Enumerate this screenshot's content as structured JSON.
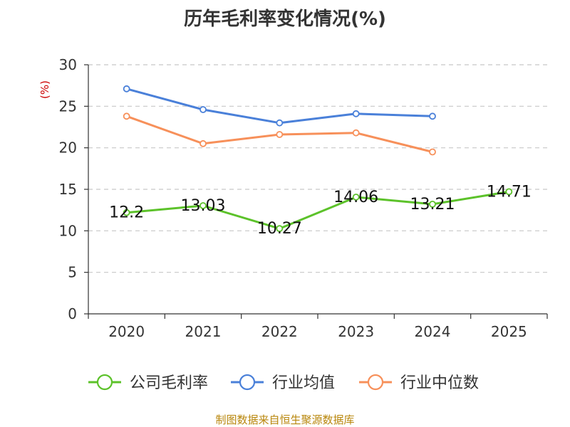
{
  "chart_data": {
    "type": "line",
    "title": "历年毛利率变化情况(%)",
    "ylabel": "(%)",
    "xlabel": "",
    "categories": [
      "2020",
      "2021",
      "2022",
      "2023",
      "2024",
      "2025"
    ],
    "ylim": [
      0,
      30
    ],
    "yticks": [
      0,
      5,
      10,
      15,
      20,
      25,
      30
    ],
    "grid": true,
    "legend_position": "bottom",
    "series": [
      {
        "name": "公司毛利率",
        "color": "#5cc22a",
        "show_labels": true,
        "values": [
          12.2,
          13.03,
          10.27,
          14.06,
          13.21,
          14.71
        ],
        "labels": [
          "12.2",
          "13.03",
          "10.27",
          "14.06",
          "13.21",
          "14.71"
        ]
      },
      {
        "name": "行业均值",
        "color": "#4a80d9",
        "show_labels": false,
        "values": [
          27.1,
          24.6,
          23.0,
          24.1,
          23.8,
          null
        ]
      },
      {
        "name": "行业中位数",
        "color": "#f7905a",
        "show_labels": false,
        "values": [
          23.8,
          20.5,
          21.6,
          21.8,
          19.5,
          null
        ]
      }
    ]
  },
  "source_note": "制图数据来自恒生聚源数据库"
}
